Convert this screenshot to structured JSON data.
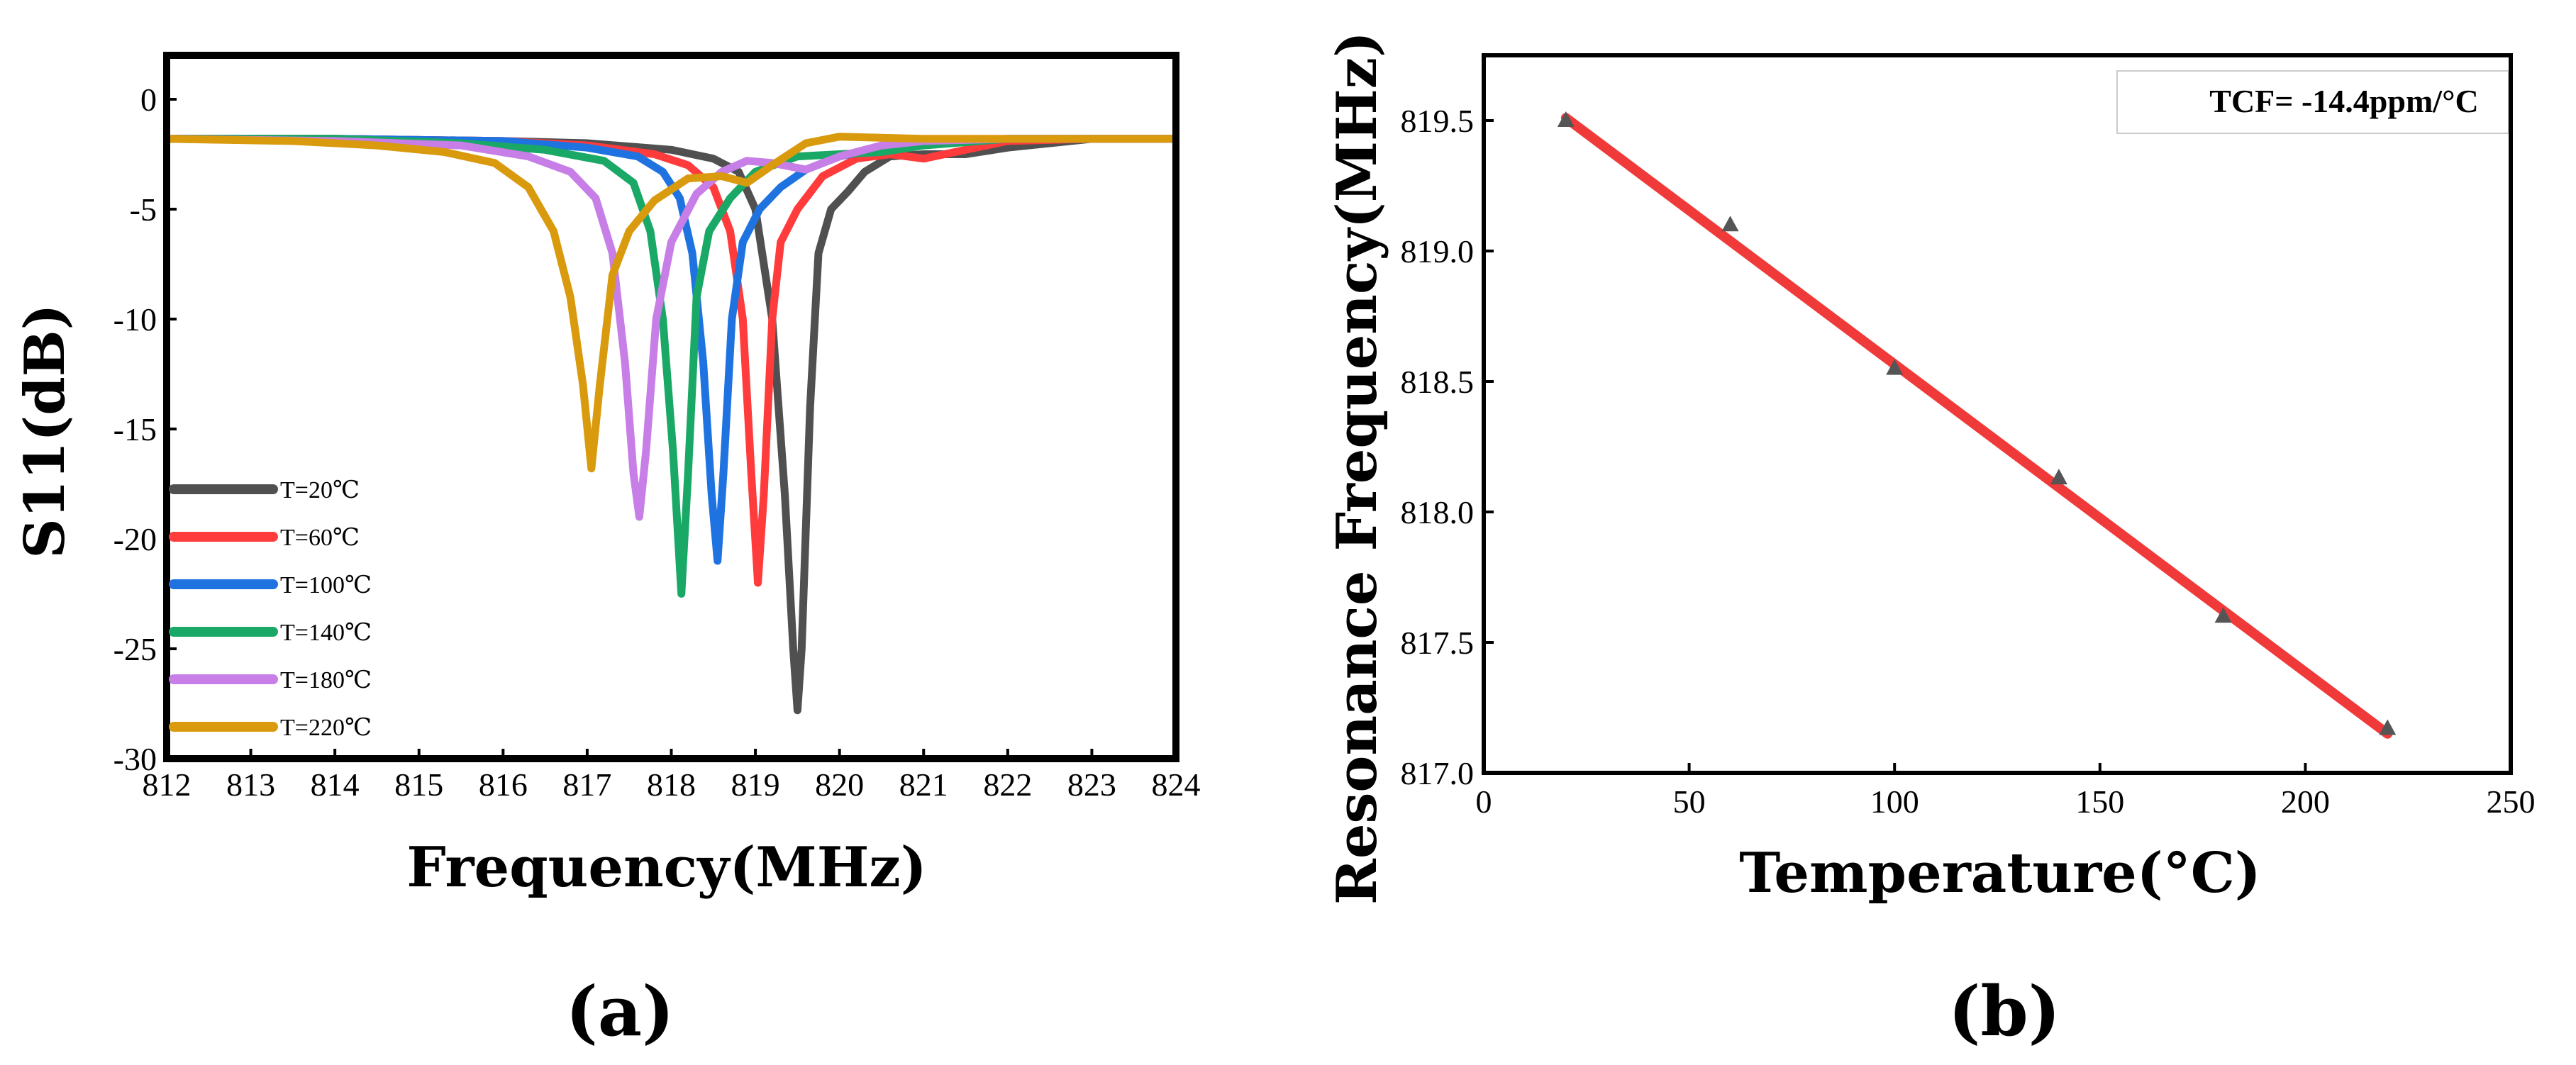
{
  "chart_data": [
    {
      "type": "line",
      "panel_label": "(a)",
      "xlabel": "Frequency(MHz)",
      "ylabel": "S11(dB)",
      "xlim": [
        812,
        824
      ],
      "ylim": [
        -30,
        2
      ],
      "xticks": [
        "812",
        "813",
        "814",
        "815",
        "816",
        "817",
        "818",
        "819",
        "820",
        "821",
        "822",
        "823",
        "824"
      ],
      "yticks": [
        "0",
        "-5",
        "-10",
        "-15",
        "-20",
        "-25",
        "-30"
      ],
      "legend_position": "bottom-left",
      "series": [
        {
          "name": "T=20℃",
          "color": "#505050",
          "points": [
            [
              812,
              -1.8
            ],
            [
              814,
              -1.8
            ],
            [
              816,
              -1.9
            ],
            [
              817,
              -2.0
            ],
            [
              818,
              -2.3
            ],
            [
              818.5,
              -2.7
            ],
            [
              818.8,
              -3.3
            ],
            [
              819.0,
              -5.0
            ],
            [
              819.2,
              -10.0
            ],
            [
              819.35,
              -18.0
            ],
            [
              819.45,
              -25.0
            ],
            [
              819.5,
              -27.8
            ],
            [
              819.55,
              -25.0
            ],
            [
              819.65,
              -14.0
            ],
            [
              819.75,
              -7.0
            ],
            [
              819.9,
              -5.0
            ],
            [
              820.1,
              -4.2
            ],
            [
              820.3,
              -3.3
            ],
            [
              820.6,
              -2.6
            ],
            [
              821,
              -2.5
            ],
            [
              821.5,
              -2.5
            ],
            [
              822,
              -2.2
            ],
            [
              823,
              -1.8
            ],
            [
              824,
              -1.8
            ]
          ]
        },
        {
          "name": "T=60℃",
          "color": "#ff3b3b",
          "points": [
            [
              812,
              -1.8
            ],
            [
              814,
              -1.8
            ],
            [
              816,
              -1.9
            ],
            [
              817,
              -2.1
            ],
            [
              817.8,
              -2.5
            ],
            [
              818.2,
              -3.0
            ],
            [
              818.5,
              -4.0
            ],
            [
              818.7,
              -6.0
            ],
            [
              818.85,
              -10.0
            ],
            [
              818.95,
              -17.0
            ],
            [
              819.03,
              -22.0
            ],
            [
              819.1,
              -18.0
            ],
            [
              819.2,
              -10.0
            ],
            [
              819.3,
              -6.5
            ],
            [
              819.5,
              -5.0
            ],
            [
              819.8,
              -3.5
            ],
            [
              820.2,
              -2.7
            ],
            [
              820.6,
              -2.5
            ],
            [
              821,
              -2.7
            ],
            [
              821.5,
              -2.3
            ],
            [
              822,
              -1.9
            ],
            [
              823,
              -1.8
            ],
            [
              824,
              -1.8
            ]
          ]
        },
        {
          "name": "T=100℃",
          "color": "#1f73e0",
          "points": [
            [
              812,
              -1.8
            ],
            [
              814,
              -1.8
            ],
            [
              816,
              -1.9
            ],
            [
              817,
              -2.2
            ],
            [
              817.6,
              -2.6
            ],
            [
              817.9,
              -3.3
            ],
            [
              818.1,
              -4.5
            ],
            [
              818.25,
              -7.0
            ],
            [
              818.38,
              -12.0
            ],
            [
              818.48,
              -18.0
            ],
            [
              818.55,
              -21.0
            ],
            [
              818.62,
              -17.0
            ],
            [
              818.72,
              -10.0
            ],
            [
              818.85,
              -6.5
            ],
            [
              819.05,
              -5.0
            ],
            [
              819.3,
              -4.0
            ],
            [
              819.6,
              -3.2
            ],
            [
              820,
              -2.6
            ],
            [
              820.5,
              -2.2
            ],
            [
              821,
              -2.0
            ],
            [
              822,
              -1.8
            ],
            [
              823,
              -1.8
            ],
            [
              824,
              -1.8
            ]
          ]
        },
        {
          "name": "T=140℃",
          "color": "#1aa866",
          "points": [
            [
              812,
              -1.8
            ],
            [
              814,
              -1.8
            ],
            [
              815.5,
              -2.0
            ],
            [
              816.5,
              -2.3
            ],
            [
              817.2,
              -2.8
            ],
            [
              817.55,
              -3.8
            ],
            [
              817.75,
              -6.0
            ],
            [
              817.9,
              -10.0
            ],
            [
              818.02,
              -16.0
            ],
            [
              818.12,
              -22.5
            ],
            [
              818.2,
              -17.0
            ],
            [
              818.3,
              -9.0
            ],
            [
              818.45,
              -6.0
            ],
            [
              818.7,
              -4.5
            ],
            [
              819.0,
              -3.3
            ],
            [
              819.5,
              -2.6
            ],
            [
              820,
              -2.5
            ],
            [
              820.5,
              -2.4
            ],
            [
              821,
              -2.1
            ],
            [
              822,
              -1.8
            ],
            [
              823,
              -1.8
            ],
            [
              824,
              -1.8
            ]
          ]
        },
        {
          "name": "T=180℃",
          "color": "#c77ee6",
          "points": [
            [
              812,
              -1.8
            ],
            [
              814,
              -1.9
            ],
            [
              815.5,
              -2.1
            ],
            [
              816.3,
              -2.6
            ],
            [
              816.8,
              -3.3
            ],
            [
              817.1,
              -4.5
            ],
            [
              817.3,
              -7.0
            ],
            [
              817.45,
              -12.0
            ],
            [
              817.55,
              -17.0
            ],
            [
              817.62,
              -19.0
            ],
            [
              817.7,
              -16.0
            ],
            [
              817.82,
              -10.0
            ],
            [
              818.0,
              -6.5
            ],
            [
              818.3,
              -4.3
            ],
            [
              818.6,
              -3.3
            ],
            [
              818.9,
              -2.8
            ],
            [
              819.2,
              -2.9
            ],
            [
              819.6,
              -3.2
            ],
            [
              820,
              -2.6
            ],
            [
              820.5,
              -2.1
            ],
            [
              821,
              -1.9
            ],
            [
              822,
              -1.8
            ],
            [
              824,
              -1.8
            ]
          ]
        },
        {
          "name": "T=220℃",
          "color": "#d99a0e",
          "points": [
            [
              812,
              -1.8
            ],
            [
              813.5,
              -1.9
            ],
            [
              814.5,
              -2.1
            ],
            [
              815.3,
              -2.4
            ],
            [
              815.9,
              -2.9
            ],
            [
              816.3,
              -4.0
            ],
            [
              816.6,
              -6.0
            ],
            [
              816.8,
              -9.0
            ],
            [
              816.95,
              -13.0
            ],
            [
              817.05,
              -16.8
            ],
            [
              817.15,
              -13.0
            ],
            [
              817.3,
              -8.0
            ],
            [
              817.5,
              -6.0
            ],
            [
              817.8,
              -4.6
            ],
            [
              818.2,
              -3.6
            ],
            [
              818.6,
              -3.5
            ],
            [
              818.9,
              -3.8
            ],
            [
              819.2,
              -3.0
            ],
            [
              819.6,
              -2.0
            ],
            [
              820,
              -1.7
            ],
            [
              821,
              -1.8
            ],
            [
              822,
              -1.8
            ],
            [
              824,
              -1.8
            ]
          ]
        }
      ]
    },
    {
      "type": "scatter",
      "panel_label": "(b)",
      "xlabel": "Temperature(°C)",
      "ylabel": "Resonance Frequency(MHz)",
      "xlim": [
        0,
        250
      ],
      "ylim": [
        817.0,
        819.75
      ],
      "xticks": [
        "0",
        "50",
        "100",
        "150",
        "200",
        "250"
      ],
      "yticks": [
        "817.0",
        "817.5",
        "818.0",
        "818.5",
        "819.0",
        "819.5"
      ],
      "annotation": "TCF= -14.4ppm/°C",
      "points": [
        [
          20,
          819.5
        ],
        [
          60,
          819.1
        ],
        [
          100,
          818.55
        ],
        [
          140,
          818.13
        ],
        [
          180,
          817.6
        ],
        [
          220,
          817.17
        ]
      ],
      "fit_line": {
        "color": "#f03a3a",
        "start": [
          20,
          819.51
        ],
        "end": [
          220,
          817.15
        ]
      },
      "marker_color": "#555555"
    }
  ]
}
